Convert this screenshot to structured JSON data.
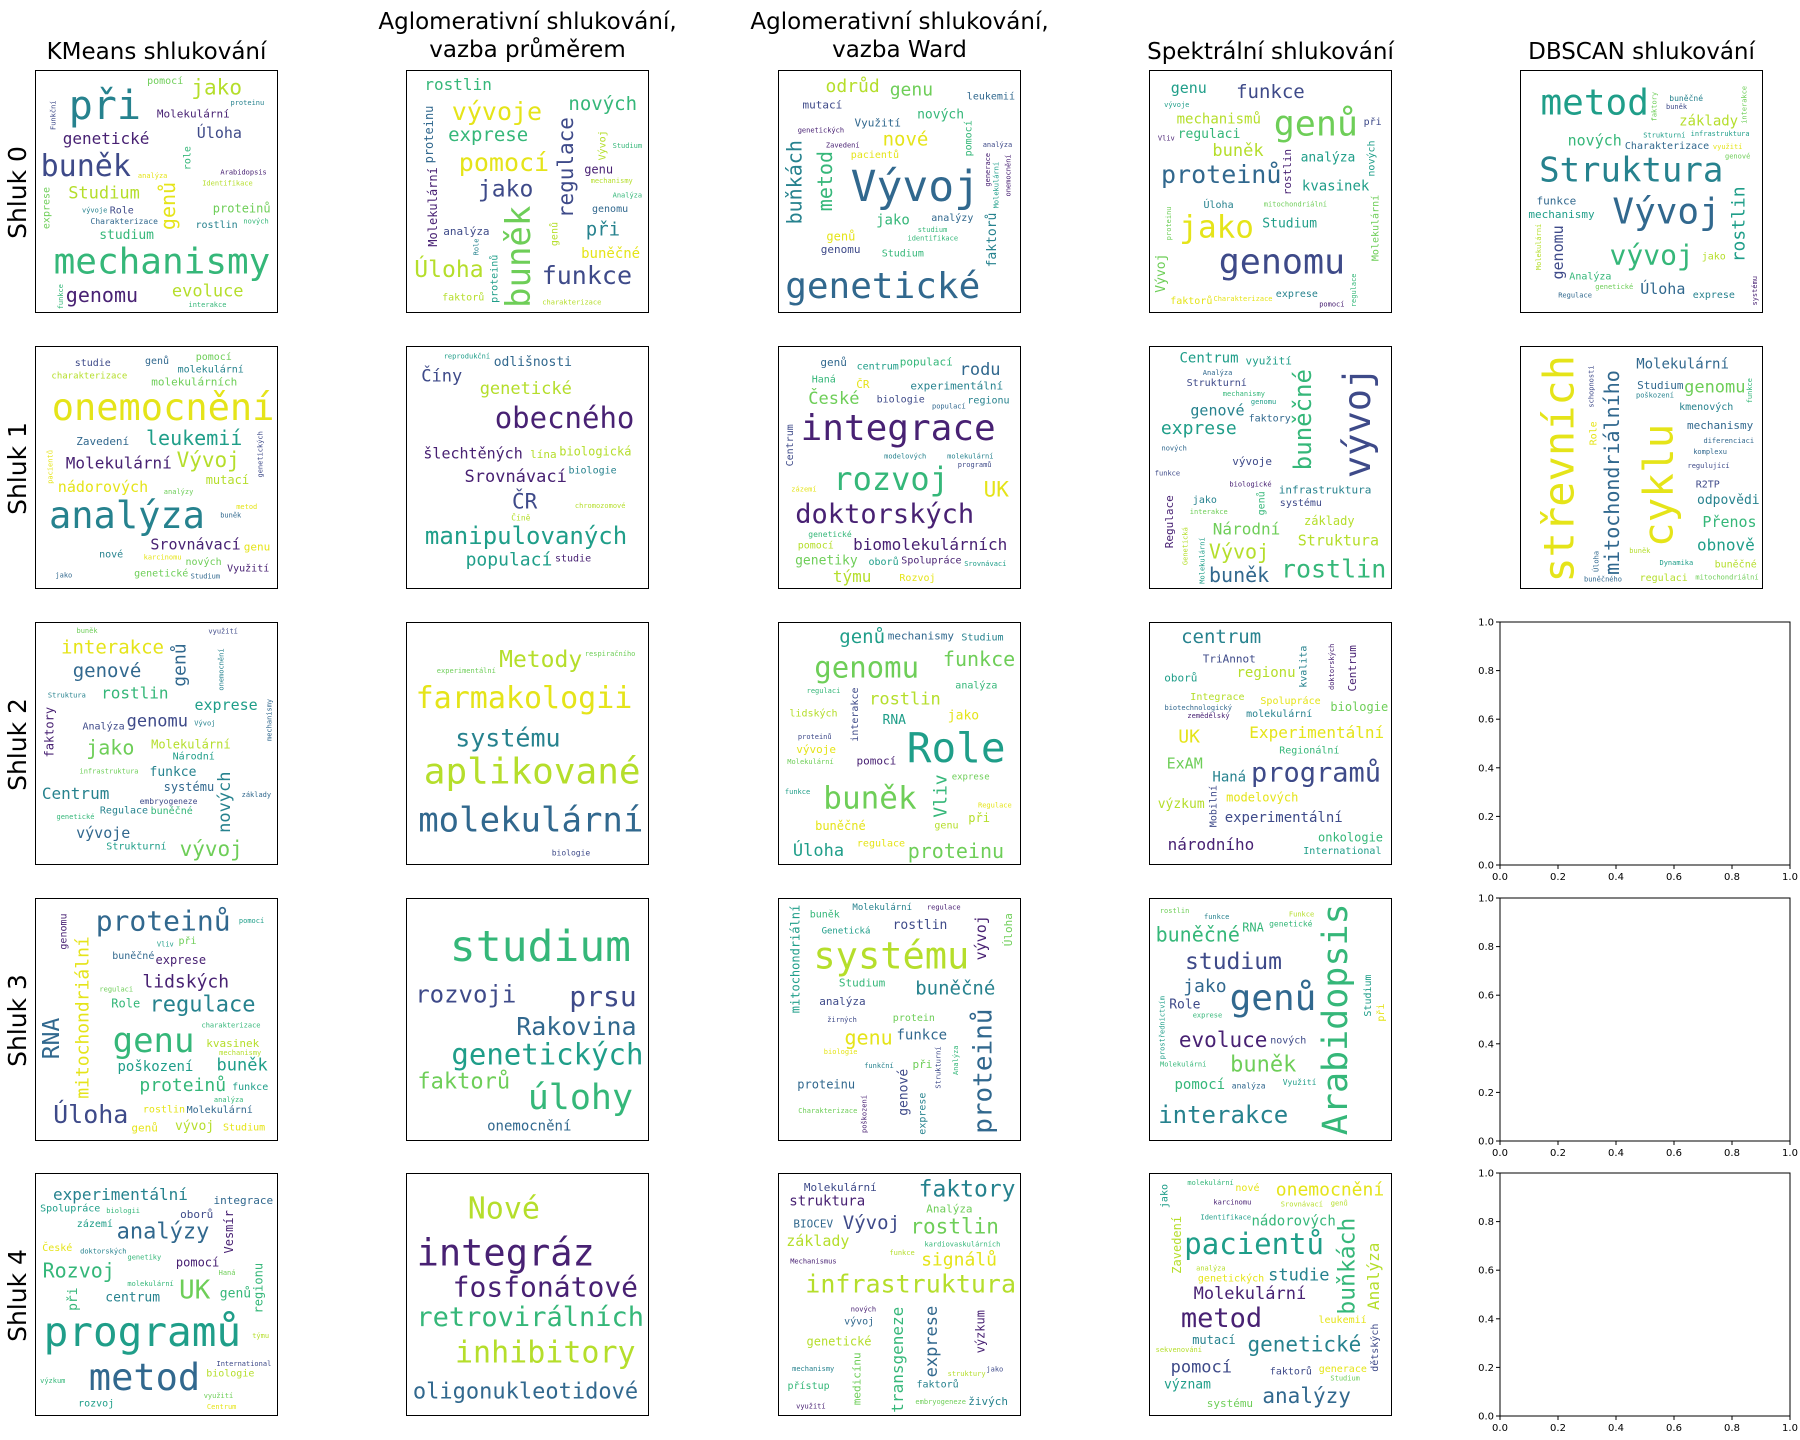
{
  "column_titles": [
    "KMeans shlukování",
    "Aglomerativní shlukování,\nvazba průměrem",
    "Aglomerativní shlukování,\nvazba Ward",
    "Spektrální shlukování",
    "DBSCAN shlukování"
  ],
  "row_labels": [
    "Shluk 0",
    "Shluk 1",
    "Shluk 2",
    "Shluk 3",
    "Shluk 4"
  ],
  "palette": {
    "dark_purple": "#482173",
    "indigo": "#3e4a89",
    "blue": "#31688e",
    "teal": "#26828e",
    "green_teal": "#1f9e89",
    "green": "#35b779",
    "light_green": "#6ece58",
    "yellow_green": "#b5de2b",
    "yellow": "#e5e419"
  },
  "empty_axes": {
    "ticks": [
      "0.0",
      "0.2",
      "0.4",
      "0.6",
      "0.8",
      "1.0"
    ],
    "xlim": [
      0,
      1
    ],
    "ylim": [
      0,
      1
    ]
  },
  "chart_data": {
    "type": "wordcloud-grid",
    "panels": [
      {
        "row": 0,
        "col": 0,
        "words": [
          "Molekulární",
          "studium",
          "proteinů",
          "Studium",
          "pomocí",
          "genomu",
          "mechanismy",
          "genetické",
          "role",
          "jako",
          "genů",
          "při",
          "buněk",
          "Arabidopsis",
          "Úloha",
          "exprese",
          "interakce",
          "Charakterizace",
          "vývoje",
          "Role",
          "rostlin",
          "evoluce",
          "proteinu",
          "Identifikace",
          "analýza",
          "funkce",
          "nových",
          "Funkční"
        ]
      },
      {
        "row": 0,
        "col": 1,
        "words": [
          "regulace",
          "buněk",
          "pomocí",
          "exprese",
          "Molekulární",
          "vývoje",
          "Vývoj",
          "jako",
          "funkce",
          "Úloha",
          "při",
          "genů",
          "analýza",
          "Studium",
          "proteinu",
          "nových",
          "buněčné",
          "genu",
          "faktorů",
          "rostlin",
          "genomu",
          "charakterizace",
          "proteinů",
          "Role",
          "Analýza",
          "mechanismy"
        ]
      },
      {
        "row": 0,
        "col": 2,
        "words": [
          "Vývoj",
          "nových",
          "mutací",
          "genů",
          "genetické",
          "buňkách",
          "pacientů",
          "Využití",
          "faktorů",
          "nové",
          "metod",
          "jako",
          "genetických",
          "Zavedení",
          "leukemií",
          "odrůd",
          "genu",
          "analýzy",
          "Molekulární",
          "Studium",
          "pomocí",
          "genomu",
          "onemocnění",
          "identifikace",
          "analýza",
          "studium",
          "generace"
        ]
      },
      {
        "row": 0,
        "col": 3,
        "words": [
          "Studium",
          "genů",
          "funkce",
          "proteinů",
          "exprese",
          "genomu",
          "Vývoj",
          "nových",
          "kvasinek",
          "jako",
          "regulaci",
          "Molekulární",
          "pomocí",
          "při",
          "rostlin",
          "Úloha",
          "mechanismů",
          "faktorů",
          "buněk",
          "analýza",
          "genu",
          "Charakterizace",
          "mitochondriální",
          "regulace",
          "vývoje",
          "Vliv",
          "proteinu"
        ]
      },
      {
        "row": 0,
        "col": 4,
        "words": [
          "vývoj",
          "základy",
          "Struktura",
          "Úloha",
          "Vývoj",
          "metod",
          "nových",
          "rostlin",
          "buněčné",
          "exprese",
          "Charakterizace",
          "genomu",
          "funkce",
          "genové",
          "Regulace",
          "jako",
          "Analýza",
          "mechanismy",
          "infrastruktura",
          "využití",
          "interakce",
          "buněk",
          "genetické",
          "Molekulární",
          "faktory",
          "Strukturní",
          "systému"
        ]
      },
      {
        "row": 1,
        "col": 0,
        "words": [
          "genetické",
          "onemocnění",
          "nové",
          "Srovnávací",
          "Molekulární",
          "molekulárních",
          "nádorových",
          "analýza",
          "leukemií",
          "Vývoj",
          "molekulární",
          "genu",
          "nových",
          "Zavedení",
          "charakterizace",
          "Využití",
          "mutací",
          "studie",
          "pacientů",
          "Studium",
          "pomocí",
          "genů",
          "jako",
          "karcinomu",
          "metod",
          "buněk",
          "genetických",
          "analýzy"
        ]
      },
      {
        "row": 1,
        "col": 1,
        "words": [
          "genetické",
          "šlechtěných",
          "manipulovaných",
          "ČR",
          "studie",
          "biologie",
          "obecného",
          "populací",
          "Číny",
          "chromozomové",
          "biologická",
          "lína",
          "Číně",
          "odlišnosti",
          "Srovnávací",
          "reprodukční"
        ]
      },
      {
        "row": 1,
        "col": 2,
        "words": [
          "integrace",
          "doktorských",
          "biologie",
          "biomolekulárních",
          "rozvoj",
          "UK",
          "týmu",
          "ČR",
          "populací",
          "Rozvoj",
          "programů",
          "Haná",
          "experimentální",
          "rodu",
          "pomocí",
          "zázemí",
          "genů",
          "České",
          "Spolupráce",
          "oborů",
          "centrum",
          "genetické",
          "modelových",
          "Srovnávací",
          "regionu",
          "Centrum",
          "populací",
          "genetiky",
          "molekulární"
        ]
      },
      {
        "row": 1,
        "col": 3,
        "words": [
          "vývoje",
          "genové",
          "genů",
          "buněk",
          "systému",
          "Regulace",
          "rostlin",
          "Strukturní",
          "základy",
          "exprese",
          "vývoj",
          "Národní",
          "buněčné",
          "infrastruktura",
          "Molekulární",
          "biologické",
          "faktory",
          "využití",
          "Struktura",
          "genomu",
          "nových",
          "interakce",
          "jako",
          "Vývoj",
          "Genetická",
          "Analýza",
          "funkce",
          "Centrum",
          "mechanismy"
        ]
      },
      {
        "row": 1,
        "col": 4,
        "words": [
          "mitochondriálního",
          "cyklu",
          "Molekulární",
          "mechanismy",
          "střevních",
          "R2TP",
          "mitochondriální",
          "Dynamika",
          "genomu",
          "Studium",
          "obnově",
          "poškození",
          "kmenových",
          "Přenos",
          "diferenciaci",
          "Úloha",
          "funkce",
          "regulující",
          "buněk",
          "buněčné",
          "Role",
          "komplexu",
          "odpovědi",
          "regulaci",
          "buněčného",
          "schopnosti"
        ]
      },
      {
        "row": 2,
        "col": 0,
        "words": [
          "Regulace",
          "rostlin",
          "jako",
          "faktory",
          "vývoje",
          "Molekulární",
          "Centrum",
          "exprese",
          "vývoj",
          "interakce",
          "genové",
          "využití",
          "nových",
          "onemocnění",
          "genomu",
          "funkce",
          "Struktura",
          "systému",
          "genů",
          "Národní",
          "Vývoj",
          "embryogeneze",
          "genetické",
          "buněčné",
          "Analýza",
          "mechanismy",
          "Strukturní",
          "buněk",
          "základy",
          "infrastruktura"
        ]
      },
      {
        "row": 2,
        "col": 1,
        "words": [
          "farmakologii",
          "molekulární",
          "aplikované",
          "Metody",
          "systému",
          "biologie",
          "experimentální",
          "respiračního"
        ]
      },
      {
        "row": 2,
        "col": 2,
        "words": [
          "genomu",
          "rostlin",
          "lidských",
          "genu",
          "buněk",
          "Vliv",
          "Role",
          "mechanismy",
          "analýza",
          "vývoje",
          "proteinů",
          "jako",
          "proteinu",
          "RNA",
          "genů",
          "exprese",
          "regulaci",
          "pomocí",
          "Molekulární",
          "Regulace",
          "funkce",
          "buněčné",
          "regulace",
          "Studium",
          "při",
          "Úloha",
          "funkce",
          "interakce"
        ]
      },
      {
        "row": 2,
        "col": 3,
        "words": [
          "Integrace",
          "Spolupráce",
          "Experimentální",
          "centrum",
          "programů",
          "oborů",
          "Mobilní",
          "molekulární",
          "onkologie",
          "modelových",
          "International",
          "Centrum",
          "experimentální",
          "Regionální",
          "národního",
          "regionu",
          "ExAM",
          "Haná",
          "zemědělský",
          "biologie",
          "UK",
          "doktorských",
          "biotechnologický",
          "kvalita",
          "výzkum",
          "TriAnnot"
        ]
      },
      {
        "row": 3,
        "col": 0,
        "words": [
          "mitochondriální",
          "lidských",
          "proteinů",
          "při",
          "genů",
          "rostlin",
          "genu",
          "mechanismy",
          "proteinů",
          "exprese",
          "buněčné",
          "regulace",
          "Úloha",
          "RNA",
          "Role",
          "charakterizace",
          "Vliv",
          "Molekulární",
          "Studium",
          "genomu",
          "poškození",
          "buněk",
          "vývoj",
          "kvasinek",
          "pomocí",
          "funkce",
          "analýza",
          "regulaci"
        ]
      },
      {
        "row": 3,
        "col": 1,
        "words": [
          "studium",
          "faktorů",
          "prsu",
          "genetických",
          "onemocnění",
          "Rakovina",
          "rozvoji",
          "úlohy"
        ]
      },
      {
        "row": 3,
        "col": 2,
        "words": [
          "proteinu",
          "buněčné",
          "rostlin",
          "genu",
          "exprese",
          "systému",
          "Studium",
          "analýza",
          "poškození",
          "mitochondriální",
          "vývoj",
          "proteinů",
          "genové",
          "biologie",
          "funkční",
          "protein",
          "Úloha",
          "buněk",
          "při",
          "žirných",
          "regulace",
          "funkce",
          "Charakterizace",
          "Molekulární",
          "Analýza",
          "Genetická",
          "Strukturní"
        ]
      },
      {
        "row": 3,
        "col": 3,
        "words": [
          "interakce",
          "Studium",
          "buněk",
          "Arabidopsis",
          "buněčné",
          "Role",
          "genů",
          "evoluce",
          "studium",
          "RNA",
          "Funkce",
          "Využití",
          "jako",
          "rostlin",
          "pomocí",
          "exprese",
          "funkce",
          "při",
          "nových",
          "analýza",
          "prostřednictvím",
          "Molekulární",
          "genetické"
        ]
      },
      {
        "row": 4,
        "col": 0,
        "words": [
          "Spolupráce",
          "Rozvoj",
          "metod",
          "Vesmír",
          "programů",
          "při",
          "UK",
          "analýzy",
          "biologie",
          "experimentální",
          "genů",
          "biologii",
          "doktorských",
          "pomocí",
          "oborů",
          "centrum",
          "integrace",
          "výzkum",
          "týmu",
          "využití",
          "rozvoj",
          "International",
          "molekulární",
          "genetiky",
          "zázemí",
          "Centrum",
          "regionu",
          "České",
          "Haná"
        ]
      },
      {
        "row": 4,
        "col": 1,
        "words": [
          "oligonukleotidové",
          "integráz",
          "inhibitory",
          "Nové",
          "retrovirálních",
          "fosfonátové"
        ]
      },
      {
        "row": 4,
        "col": 2,
        "words": [
          "infrastruktura",
          "rostlin",
          "transgeneze",
          "Molekulární",
          "výzkum",
          "faktory",
          "živých",
          "medicínu",
          "exprese",
          "vývoj",
          "signálů",
          "základy",
          "struktury",
          "využití",
          "přístup",
          "funkce",
          "faktorů",
          "Vývoj",
          "jako",
          "genetické",
          "struktura",
          "mechanismy",
          "nových",
          "Analýza",
          "Mechanismus",
          "embryogeneze",
          "BIOCEV",
          "kardiovaskulárních"
        ]
      },
      {
        "row": 4,
        "col": 3,
        "words": [
          "leukemií",
          "genetických",
          "pacientů",
          "nádorových",
          "metod",
          "buňkách",
          "pomocí",
          "genetické",
          "studie",
          "analýzy",
          "onemocnění",
          "faktorů",
          "Analýza",
          "Zavedení",
          "Molekulární",
          "generace",
          "mutací",
          "systému",
          "nové",
          "dětských",
          "genů",
          "analýza",
          "jako",
          "význam",
          "karcinomu",
          "sekvenování",
          "molekulární",
          "Studium",
          "Identifikace",
          "Srovnávací"
        ]
      }
    ]
  }
}
